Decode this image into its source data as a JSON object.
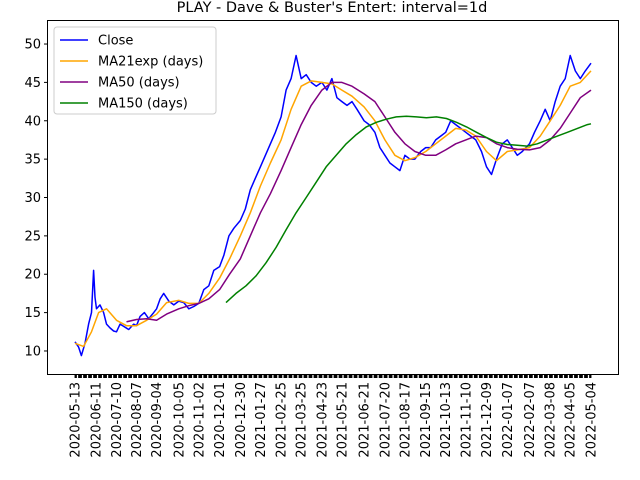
{
  "chart_data": {
    "type": "line",
    "title": "PLAY - Dave & Buster's Entert: interval=1d",
    "xlabel": "",
    "ylabel": "",
    "ylim": [
      7.0,
      53.0
    ],
    "yticks": [
      10,
      15,
      20,
      25,
      30,
      35,
      40,
      45,
      50
    ],
    "xticks": [
      "2020-05-13",
      "2020-06-11",
      "2020-07-10",
      "2020-08-07",
      "2020-09-04",
      "2020-10-05",
      "2020-11-02",
      "2020-12-01",
      "2020-12-30",
      "2021-01-27",
      "2021-02-25",
      "2021-03-25",
      "2021-04-23",
      "2021-05-21",
      "2021-06-21",
      "2021-07-20",
      "2021-08-17",
      "2021-09-15",
      "2021-10-13",
      "2021-11-10",
      "2021-12-09",
      "2022-01-07",
      "2022-02-07",
      "2022-03-08",
      "2022-04-05",
      "2022-05-04"
    ],
    "x_start": "2020-05-13",
    "x_end": "2022-05-04",
    "grid": false,
    "legend_position": "top-left",
    "series": [
      {
        "name": "Close",
        "color": "#0000ff",
        "points": [
          [
            "2020-05-13",
            11.2
          ],
          [
            "2020-05-18",
            10.5
          ],
          [
            "2020-05-22",
            9.4
          ],
          [
            "2020-05-27",
            11.0
          ],
          [
            "2020-06-01",
            13.5
          ],
          [
            "2020-06-05",
            15.0
          ],
          [
            "2020-06-08",
            20.5
          ],
          [
            "2020-06-10",
            17.0
          ],
          [
            "2020-06-12",
            15.5
          ],
          [
            "2020-06-17",
            16.0
          ],
          [
            "2020-06-22",
            15.0
          ],
          [
            "2020-06-26",
            13.5
          ],
          [
            "2020-07-01",
            13.0
          ],
          [
            "2020-07-06",
            12.6
          ],
          [
            "2020-07-10",
            12.5
          ],
          [
            "2020-07-15",
            13.5
          ],
          [
            "2020-07-20",
            13.2
          ],
          [
            "2020-07-27",
            12.8
          ],
          [
            "2020-08-03",
            13.5
          ],
          [
            "2020-08-07",
            13.3
          ],
          [
            "2020-08-12",
            14.5
          ],
          [
            "2020-08-18",
            15.0
          ],
          [
            "2020-08-24",
            14.2
          ],
          [
            "2020-08-31",
            15.0
          ],
          [
            "2020-09-04",
            15.5
          ],
          [
            "2020-09-09",
            16.8
          ],
          [
            "2020-09-14",
            17.5
          ],
          [
            "2020-09-21",
            16.5
          ],
          [
            "2020-09-28",
            16.0
          ],
          [
            "2020-10-05",
            16.5
          ],
          [
            "2020-10-12",
            16.3
          ],
          [
            "2020-10-19",
            15.5
          ],
          [
            "2020-10-26",
            15.8
          ],
          [
            "2020-11-02",
            16.2
          ],
          [
            "2020-11-09",
            18.0
          ],
          [
            "2020-11-16",
            18.5
          ],
          [
            "2020-11-23",
            20.5
          ],
          [
            "2020-12-01",
            21.0
          ],
          [
            "2020-12-07",
            22.5
          ],
          [
            "2020-12-14",
            25.0
          ],
          [
            "2020-12-21",
            26.0
          ],
          [
            "2020-12-30",
            27.0
          ],
          [
            "2021-01-06",
            28.5
          ],
          [
            "2021-01-13",
            31.0
          ],
          [
            "2021-01-20",
            32.5
          ],
          [
            "2021-01-27",
            34.0
          ],
          [
            "2021-02-03",
            35.5
          ],
          [
            "2021-02-10",
            37.0
          ],
          [
            "2021-02-17",
            38.5
          ],
          [
            "2021-02-25",
            40.5
          ],
          [
            "2021-03-04",
            44.0
          ],
          [
            "2021-03-11",
            45.5
          ],
          [
            "2021-03-18",
            48.5
          ],
          [
            "2021-03-25",
            45.5
          ],
          [
            "2021-04-01",
            46.0
          ],
          [
            "2021-04-08",
            45.0
          ],
          [
            "2021-04-15",
            44.5
          ],
          [
            "2021-04-23",
            45.0
          ],
          [
            "2021-04-30",
            44.0
          ],
          [
            "2021-05-07",
            45.5
          ],
          [
            "2021-05-14",
            43.0
          ],
          [
            "2021-05-21",
            42.5
          ],
          [
            "2021-05-28",
            42.0
          ],
          [
            "2021-06-04",
            42.5
          ],
          [
            "2021-06-11",
            41.5
          ],
          [
            "2021-06-21",
            40.0
          ],
          [
            "2021-06-28",
            39.5
          ],
          [
            "2021-07-06",
            38.5
          ],
          [
            "2021-07-13",
            36.5
          ],
          [
            "2021-07-20",
            35.5
          ],
          [
            "2021-07-27",
            34.5
          ],
          [
            "2021-08-03",
            34.0
          ],
          [
            "2021-08-10",
            33.5
          ],
          [
            "2021-08-17",
            35.5
          ],
          [
            "2021-08-24",
            35.0
          ],
          [
            "2021-08-31",
            35.0
          ],
          [
            "2021-09-08",
            36.0
          ],
          [
            "2021-09-15",
            36.5
          ],
          [
            "2021-09-22",
            36.5
          ],
          [
            "2021-09-29",
            37.5
          ],
          [
            "2021-10-06",
            38.0
          ],
          [
            "2021-10-13",
            38.5
          ],
          [
            "2021-10-20",
            40.0
          ],
          [
            "2021-10-27",
            39.5
          ],
          [
            "2021-11-03",
            39.0
          ],
          [
            "2021-11-10",
            38.5
          ],
          [
            "2021-11-17",
            38.0
          ],
          [
            "2021-11-24",
            37.5
          ],
          [
            "2021-12-02",
            36.0
          ],
          [
            "2021-12-09",
            34.0
          ],
          [
            "2021-12-16",
            33.0
          ],
          [
            "2021-12-23",
            35.0
          ],
          [
            "2021-12-31",
            37.0
          ],
          [
            "2022-01-07",
            37.5
          ],
          [
            "2022-01-14",
            36.5
          ],
          [
            "2022-01-21",
            35.5
          ],
          [
            "2022-01-28",
            36.0
          ],
          [
            "2022-02-07",
            37.0
          ],
          [
            "2022-02-14",
            38.5
          ],
          [
            "2022-02-22",
            40.0
          ],
          [
            "2022-03-01",
            41.5
          ],
          [
            "2022-03-08",
            40.0
          ],
          [
            "2022-03-15",
            42.5
          ],
          [
            "2022-03-22",
            44.5
          ],
          [
            "2022-03-29",
            45.5
          ],
          [
            "2022-04-05",
            48.5
          ],
          [
            "2022-04-12",
            46.5
          ],
          [
            "2022-04-19",
            45.5
          ],
          [
            "2022-04-26",
            46.5
          ],
          [
            "2022-05-04",
            47.5
          ]
        ]
      },
      {
        "name": "MA21exp (days)",
        "color": "#ffa500",
        "points": [
          [
            "2020-05-13",
            11.0
          ],
          [
            "2020-05-25",
            10.6
          ],
          [
            "2020-06-05",
            12.5
          ],
          [
            "2020-06-15",
            15.0
          ],
          [
            "2020-06-26",
            15.5
          ],
          [
            "2020-07-10",
            14.0
          ],
          [
            "2020-07-24",
            13.3
          ],
          [
            "2020-08-07",
            13.3
          ],
          [
            "2020-08-21",
            14.0
          ],
          [
            "2020-09-04",
            14.8
          ],
          [
            "2020-09-18",
            16.3
          ],
          [
            "2020-10-05",
            16.6
          ],
          [
            "2020-10-19",
            16.2
          ],
          [
            "2020-11-02",
            16.2
          ],
          [
            "2020-11-16",
            17.5
          ],
          [
            "2020-12-01",
            19.5
          ],
          [
            "2020-12-15",
            22.0
          ],
          [
            "2020-12-30",
            25.0
          ],
          [
            "2021-01-13",
            28.0
          ],
          [
            "2021-01-27",
            31.5
          ],
          [
            "2021-02-10",
            34.5
          ],
          [
            "2021-02-25",
            37.5
          ],
          [
            "2021-03-11",
            41.5
          ],
          [
            "2021-03-25",
            44.5
          ],
          [
            "2021-04-08",
            45.2
          ],
          [
            "2021-04-23",
            45.0
          ],
          [
            "2021-05-07",
            44.8
          ],
          [
            "2021-05-21",
            44.0
          ],
          [
            "2021-06-04",
            43.2
          ],
          [
            "2021-06-21",
            41.8
          ],
          [
            "2021-07-06",
            40.0
          ],
          [
            "2021-07-20",
            37.5
          ],
          [
            "2021-08-03",
            35.5
          ],
          [
            "2021-08-17",
            34.8
          ],
          [
            "2021-08-31",
            35.2
          ],
          [
            "2021-09-15",
            36.0
          ],
          [
            "2021-09-29",
            37.0
          ],
          [
            "2021-10-13",
            38.0
          ],
          [
            "2021-10-27",
            39.0
          ],
          [
            "2021-11-10",
            38.8
          ],
          [
            "2021-11-24",
            38.0
          ],
          [
            "2021-12-09",
            36.0
          ],
          [
            "2021-12-23",
            34.8
          ],
          [
            "2022-01-07",
            36.0
          ],
          [
            "2022-01-21",
            36.2
          ],
          [
            "2022-02-07",
            36.5
          ],
          [
            "2022-02-22",
            38.0
          ],
          [
            "2022-03-08",
            40.0
          ],
          [
            "2022-03-22",
            42.0
          ],
          [
            "2022-04-05",
            44.5
          ],
          [
            "2022-04-19",
            45.0
          ],
          [
            "2022-05-04",
            46.5
          ]
        ]
      },
      {
        "name": "MA50 (days)",
        "color": "#800080",
        "points": [
          [
            "2020-07-24",
            13.8
          ],
          [
            "2020-08-07",
            14.1
          ],
          [
            "2020-08-21",
            14.2
          ],
          [
            "2020-09-04",
            14.0
          ],
          [
            "2020-09-18",
            14.8
          ],
          [
            "2020-10-05",
            15.5
          ],
          [
            "2020-10-19",
            15.9
          ],
          [
            "2020-11-02",
            16.2
          ],
          [
            "2020-11-16",
            16.8
          ],
          [
            "2020-12-01",
            18.0
          ],
          [
            "2020-12-15",
            20.0
          ],
          [
            "2020-12-30",
            22.0
          ],
          [
            "2021-01-13",
            25.0
          ],
          [
            "2021-01-27",
            28.0
          ],
          [
            "2021-02-10",
            30.5
          ],
          [
            "2021-02-25",
            33.5
          ],
          [
            "2021-03-11",
            36.5
          ],
          [
            "2021-03-25",
            39.5
          ],
          [
            "2021-04-08",
            42.0
          ],
          [
            "2021-04-23",
            44.0
          ],
          [
            "2021-05-07",
            45.0
          ],
          [
            "2021-05-21",
            45.0
          ],
          [
            "2021-06-04",
            44.5
          ],
          [
            "2021-06-21",
            43.5
          ],
          [
            "2021-07-06",
            42.5
          ],
          [
            "2021-07-20",
            40.5
          ],
          [
            "2021-08-03",
            38.5
          ],
          [
            "2021-08-17",
            37.0
          ],
          [
            "2021-08-31",
            36.0
          ],
          [
            "2021-09-15",
            35.5
          ],
          [
            "2021-09-29",
            35.5
          ],
          [
            "2021-10-13",
            36.2
          ],
          [
            "2021-10-27",
            37.0
          ],
          [
            "2021-11-10",
            37.5
          ],
          [
            "2021-11-24",
            38.0
          ],
          [
            "2021-12-09",
            37.8
          ],
          [
            "2021-12-23",
            37.0
          ],
          [
            "2022-01-07",
            36.5
          ],
          [
            "2022-01-21",
            36.3
          ],
          [
            "2022-02-07",
            36.2
          ],
          [
            "2022-02-22",
            36.5
          ],
          [
            "2022-03-08",
            37.5
          ],
          [
            "2022-03-22",
            39.0
          ],
          [
            "2022-04-05",
            41.0
          ],
          [
            "2022-04-19",
            43.0
          ],
          [
            "2022-05-04",
            44.0
          ]
        ]
      },
      {
        "name": "MA150 (days)",
        "color": "#008000",
        "points": [
          [
            "2020-12-10",
            16.3
          ],
          [
            "2020-12-24",
            17.5
          ],
          [
            "2021-01-07",
            18.5
          ],
          [
            "2021-01-21",
            19.8
          ],
          [
            "2021-02-04",
            21.5
          ],
          [
            "2021-02-18",
            23.5
          ],
          [
            "2021-03-04",
            25.8
          ],
          [
            "2021-03-18",
            28.0
          ],
          [
            "2021-04-01",
            30.0
          ],
          [
            "2021-04-15",
            32.0
          ],
          [
            "2021-04-29",
            34.0
          ],
          [
            "2021-05-13",
            35.5
          ],
          [
            "2021-05-27",
            37.0
          ],
          [
            "2021-06-10",
            38.2
          ],
          [
            "2021-06-24",
            39.2
          ],
          [
            "2021-07-08",
            39.8
          ],
          [
            "2021-07-22",
            40.2
          ],
          [
            "2021-08-05",
            40.5
          ],
          [
            "2021-08-19",
            40.6
          ],
          [
            "2021-09-02",
            40.5
          ],
          [
            "2021-09-16",
            40.4
          ],
          [
            "2021-09-30",
            40.5
          ],
          [
            "2021-10-14",
            40.3
          ],
          [
            "2021-10-28",
            39.8
          ],
          [
            "2021-11-11",
            39.2
          ],
          [
            "2021-11-25",
            38.5
          ],
          [
            "2021-12-09",
            37.8
          ],
          [
            "2021-12-23",
            37.2
          ],
          [
            "2022-01-07",
            36.9
          ],
          [
            "2022-01-21",
            36.8
          ],
          [
            "2022-02-04",
            36.7
          ],
          [
            "2022-02-18",
            37.0
          ],
          [
            "2022-03-04",
            37.5
          ],
          [
            "2022-03-18",
            38.0
          ],
          [
            "2022-04-01",
            38.5
          ],
          [
            "2022-04-15",
            39.0
          ],
          [
            "2022-04-29",
            39.5
          ],
          [
            "2022-05-04",
            39.6
          ]
        ]
      }
    ]
  }
}
